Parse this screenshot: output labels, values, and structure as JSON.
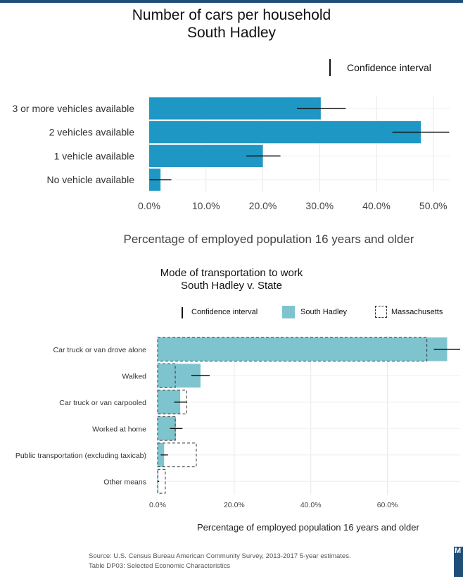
{
  "chart_data": [
    {
      "type": "bar",
      "orientation": "horizontal",
      "title": "Number of cars per household",
      "subtitle": "South Hadley",
      "categories": [
        "3 or more vehicles available",
        "2 vehicles available",
        "1 vehicle available",
        "No vehicle available"
      ],
      "values": [
        30.2,
        47.8,
        20.0,
        2.0
      ],
      "ci_low": [
        26.0,
        42.8,
        17.1,
        0.1
      ],
      "ci_high": [
        34.6,
        52.8,
        23.1,
        3.9
      ],
      "xlim": [
        0,
        53
      ],
      "ticks": [
        "0.0%",
        "10.0%",
        "20.0%",
        "30.0%",
        "40.0%",
        "50.0%"
      ],
      "tick_values": [
        0,
        10,
        20,
        30,
        40,
        50
      ],
      "xlabel": "Percentage of employed population 16 years and older",
      "legend": {
        "ci": "Confidence interval",
        "position": "top-right"
      },
      "color": "#1f97c5",
      "grid": true
    },
    {
      "type": "bar",
      "orientation": "horizontal",
      "title": "Mode of transportation to work",
      "subtitle": "South Hadley v. State",
      "categories": [
        "Car truck or van drove alone",
        "Walked",
        "Car truck or van carpooled",
        "Worked at home",
        "Public transportation (excluding taxicab)",
        "Other means"
      ],
      "series": [
        {
          "name": "South Hadley",
          "values": [
            75.6,
            11.2,
            5.9,
            4.8,
            1.7,
            0.2
          ]
        },
        {
          "name": "Massachusetts",
          "values": [
            70.3,
            4.6,
            7.6,
            4.6,
            10.1,
            2.0
          ]
        }
      ],
      "ci_low": [
        72.1,
        8.8,
        4.3,
        3.2,
        0.8,
        0.0
      ],
      "ci_high": [
        79.0,
        13.6,
        7.5,
        6.5,
        2.7,
        0.4
      ],
      "xlim": [
        0,
        79
      ],
      "ticks": [
        "0.0%",
        "20.0%",
        "40.0%",
        "60.0%"
      ],
      "tick_values": [
        0,
        20,
        40,
        60
      ],
      "xlabel": "Percentage of employed population 16 years and older",
      "legend": {
        "ci": "Confidence interval",
        "position": "top"
      },
      "colors": {
        "South Hadley": "#7ec4cf",
        "Massachusetts": "#333333"
      },
      "grid": true
    }
  ],
  "source": {
    "line1": "Source: U.S. Census Bureau American Community Survey, 2013-2017 5-year estimates.",
    "line2": "Table DP03: Selected Economic Characteristics"
  },
  "logo_text": "M"
}
